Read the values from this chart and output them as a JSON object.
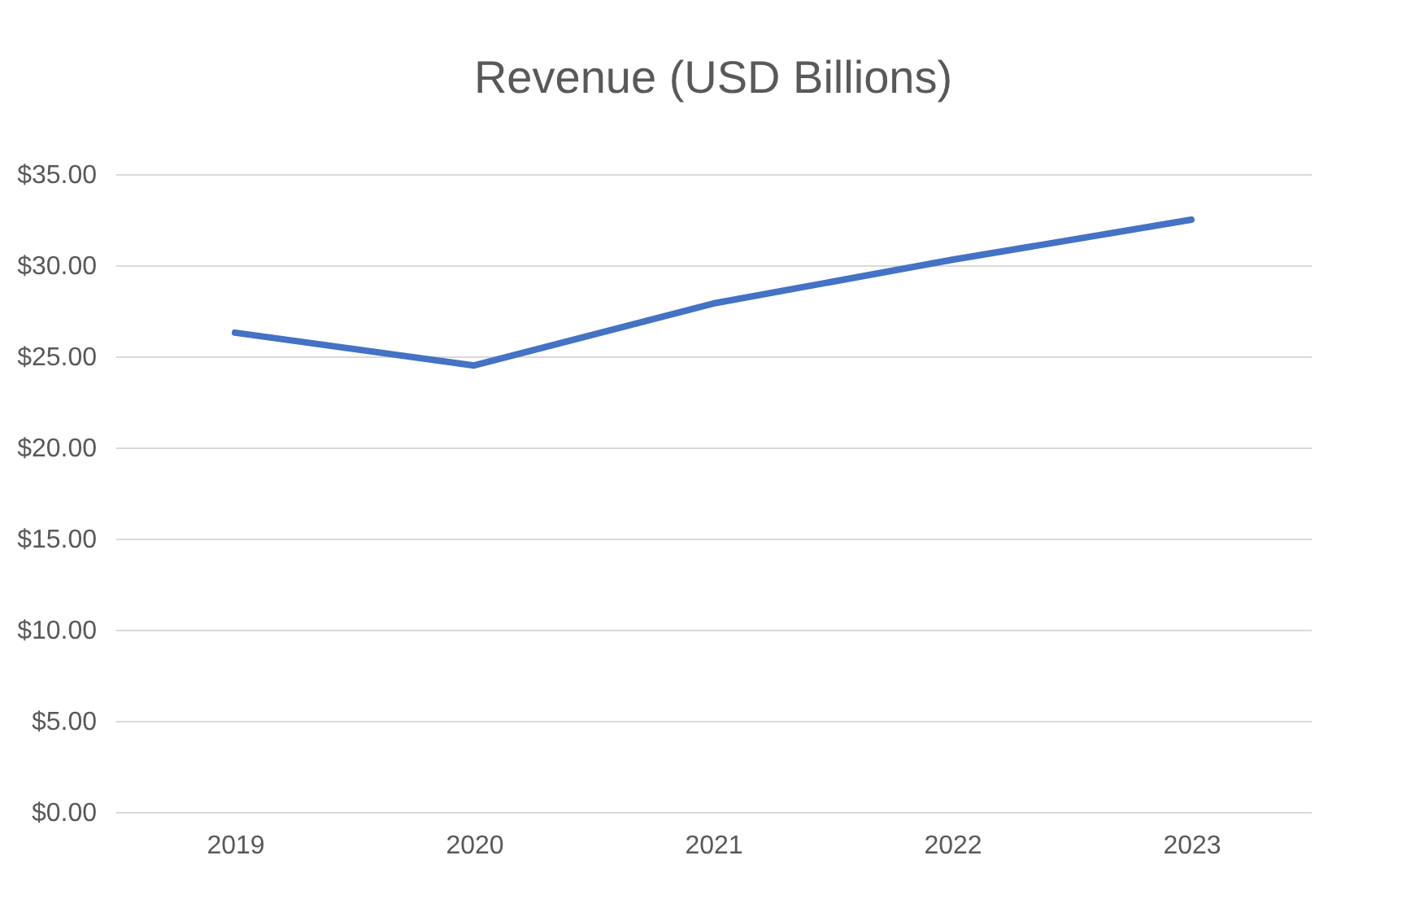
{
  "chart_data": {
    "type": "line",
    "title": "Revenue (USD Billions)",
    "categories": [
      "2019",
      "2020",
      "2021",
      "2022",
      "2023"
    ],
    "series": [
      {
        "color": "#4472c4",
        "values": [
          26.3,
          24.5,
          27.9,
          30.3,
          32.5
        ]
      }
    ],
    "ylim": [
      0,
      35
    ],
    "yticks": [
      {
        "value": 0,
        "label": "$0.00"
      },
      {
        "value": 5,
        "label": "$5.00"
      },
      {
        "value": 10,
        "label": "$10.00"
      },
      {
        "value": 15,
        "label": "$15.00"
      },
      {
        "value": 20,
        "label": "$20.00"
      },
      {
        "value": 25,
        "label": "$25.00"
      },
      {
        "value": 30,
        "label": "$30.00"
      },
      {
        "value": 35,
        "label": "$35.00"
      }
    ],
    "grid": "y",
    "marker": "none",
    "line_style": "solid"
  }
}
